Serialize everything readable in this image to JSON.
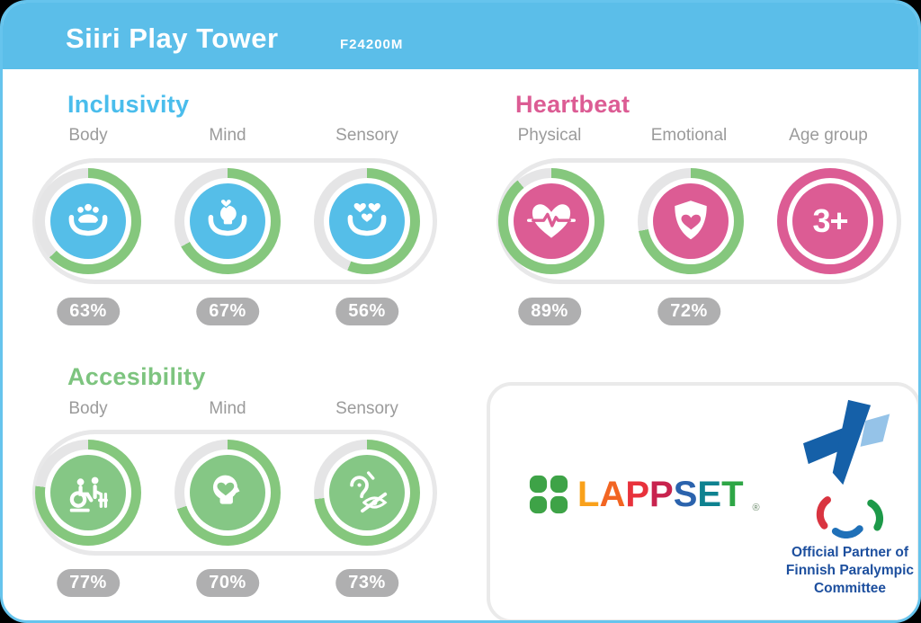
{
  "colors": {
    "page_bg": "#000000",
    "card_border": "#66C4ED",
    "header_blue": "#5BBEE9",
    "progress_green": "#85C77D",
    "track_gray": "#E5E5E6",
    "pill_border": "#E8E8E9",
    "badge_gray": "#AFAFB0",
    "label_gray": "#9B9B9B",
    "box_border": "#EAEAEA"
  },
  "header": {
    "title": "Siiri Play Tower",
    "code": "F24200M"
  },
  "sections": {
    "inclusivity": {
      "title": "Inclusivity",
      "title_color": "#4ABDEC",
      "accent": "#55BEE8",
      "gauges": [
        {
          "label": "Body",
          "value": 63,
          "value_label": "63%",
          "icon": "hands-people-icon"
        },
        {
          "label": "Mind",
          "value": 67,
          "value_label": "67%",
          "icon": "hands-mind-icon"
        },
        {
          "label": "Sensory",
          "value": 56,
          "value_label": "56%",
          "icon": "hands-hearts-icon"
        }
      ]
    },
    "heartbeat": {
      "title": "Heartbeat",
      "title_color": "#DC5C94",
      "accent": "#DC5C94",
      "gauges": [
        {
          "label": "Physical",
          "value": 89,
          "value_label": "89%",
          "icon": "heart-pulse-icon"
        },
        {
          "label": "Emotional",
          "value": 72,
          "value_label": "72%",
          "icon": "shield-heart-icon"
        },
        {
          "label": "Age group",
          "value": null,
          "ring": "accent",
          "text": "3+",
          "icon": "age-badge"
        }
      ]
    },
    "accessibility": {
      "title": "Accesibility",
      "title_color": "#7DC47F",
      "accent": "#85C785",
      "gauges": [
        {
          "label": "Body",
          "value": 77,
          "value_label": "77%",
          "icon": "wheelchair-assist-icon"
        },
        {
          "label": "Mind",
          "value": 70,
          "value_label": "70%",
          "icon": "head-heart-icon"
        },
        {
          "label": "Sensory",
          "value": 73,
          "value_label": "73%",
          "icon": "sensory-impairment-icon"
        }
      ]
    }
  },
  "partner_box": {
    "lappset": {
      "letters": [
        {
          "ch": "L",
          "color": "#F9A11B"
        },
        {
          "ch": "A",
          "color": "#F26522"
        },
        {
          "ch": "P",
          "color": "#E8323C"
        },
        {
          "ch": "P",
          "color": "#C8234E"
        },
        {
          "ch": "S",
          "color": "#2B63AD"
        },
        {
          "ch": "E",
          "color": "#0E8290"
        },
        {
          "ch": "T",
          "color": "#2EA646"
        }
      ],
      "registered": "®"
    },
    "paralympic": {
      "caption_lines": [
        "Official Partner of",
        "Finnish Paralympic",
        "Committee"
      ],
      "caption_color": "#1D4F9E"
    }
  },
  "chart_data": [
    {
      "type": "pie",
      "subtype": "radial-gauge",
      "title": "Inclusivity",
      "categories": [
        "Body",
        "Mind",
        "Sensory"
      ],
      "values": [
        63,
        67,
        56
      ],
      "unit": "%"
    },
    {
      "type": "pie",
      "subtype": "radial-gauge",
      "title": "Heartbeat",
      "categories": [
        "Physical",
        "Emotional",
        "Age group"
      ],
      "values": [
        89,
        72,
        null
      ],
      "unit": "%",
      "annotations": [
        "",
        "",
        "3+"
      ]
    },
    {
      "type": "pie",
      "subtype": "radial-gauge",
      "title": "Accesibility",
      "categories": [
        "Body",
        "Mind",
        "Sensory"
      ],
      "values": [
        77,
        70,
        73
      ],
      "unit": "%"
    }
  ]
}
